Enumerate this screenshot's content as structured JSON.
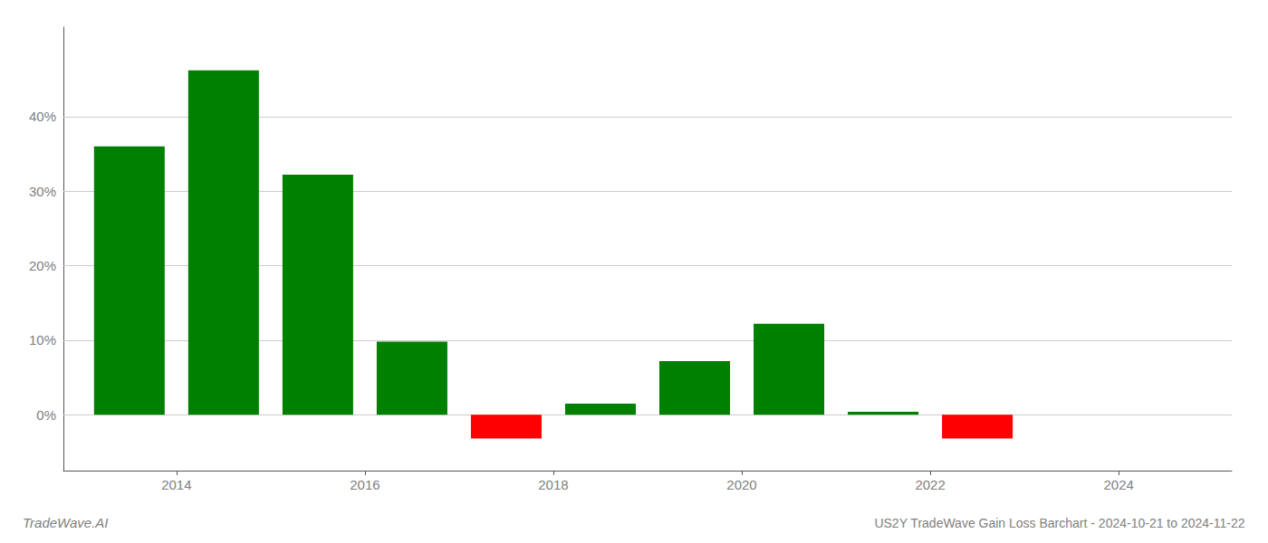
{
  "chart_data": {
    "type": "bar",
    "title": "US2Y TradeWave Gain Loss Barchart - 2024-10-21 to 2024-11-22",
    "annotations": [
      "TradeWave.AI"
    ],
    "x": [
      2013.5,
      2014.5,
      2015.5,
      2016.5,
      2017.5,
      2018.5,
      2019.5,
      2020.5,
      2021.5,
      2022.5,
      2023.5
    ],
    "values": [
      0.36,
      0.462,
      0.322,
      0.098,
      -0.032,
      0.015,
      0.072,
      0.122,
      0.004,
      -0.032,
      0.0
    ],
    "colors": [
      "#008000",
      "#008000",
      "#008000",
      "#008000",
      "#ff0000",
      "#008000",
      "#008000",
      "#008000",
      "#008000",
      "#ff0000",
      "#008000"
    ],
    "xlim": [
      2012.8,
      2025.2
    ],
    "xticks": [
      2014,
      2016,
      2018,
      2020,
      2022,
      2024
    ],
    "ylim": [
      -0.075,
      0.52
    ],
    "yticks": [
      {
        "value": 0.0,
        "label": "0%"
      },
      {
        "value": 0.1,
        "label": "10%"
      },
      {
        "value": 0.2,
        "label": "20%"
      },
      {
        "value": 0.3,
        "label": "30%"
      },
      {
        "value": 0.4,
        "label": "40%"
      }
    ],
    "grid": true
  }
}
